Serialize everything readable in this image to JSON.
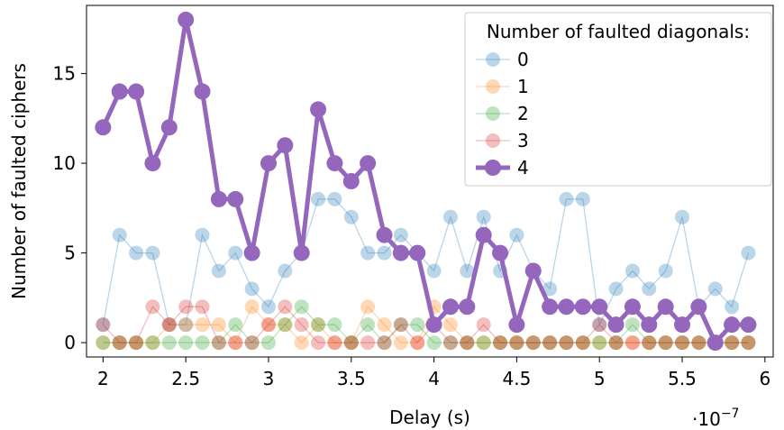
{
  "chart_data": {
    "type": "line",
    "title": "",
    "xlabel": "Delay (s)",
    "ylabel": "Number of faulted ciphers",
    "x_scale_label": "·10",
    "x_scale_exponent": "−7",
    "xlim": [
      1.9,
      6.05
    ],
    "ylim": [
      -0.8,
      18.8
    ],
    "x_ticks": [
      2,
      2.5,
      3,
      3.5,
      4,
      4.5,
      5,
      5.5,
      6
    ],
    "x_tick_labels": [
      "2",
      "2.5",
      "3",
      "3.5",
      "4",
      "4.5",
      "5",
      "5.5",
      "6"
    ],
    "y_ticks": [
      0,
      5,
      10,
      15
    ],
    "y_tick_labels": [
      "0",
      "5",
      "10",
      "15"
    ],
    "grid": false,
    "legend": {
      "title": "Number of faulted diagonals:",
      "position": "top-right"
    },
    "x": [
      2.0,
      2.1,
      2.2,
      2.3,
      2.4,
      2.5,
      2.6,
      2.7,
      2.8,
      2.9,
      3.0,
      3.1,
      3.2,
      3.3,
      3.4,
      3.5,
      3.6,
      3.7,
      3.8,
      3.9,
      4.0,
      4.1,
      4.2,
      4.3,
      4.4,
      4.5,
      4.6,
      4.7,
      4.8,
      4.9,
      5.0,
      5.1,
      5.2,
      5.3,
      5.4,
      5.5,
      5.6,
      5.7,
      5.8,
      5.9
    ],
    "series": [
      {
        "name": "0",
        "color": "#1f77b4",
        "emphasis": false,
        "values": [
          1,
          6,
          5,
          5,
          1,
          1,
          6,
          4,
          5,
          3,
          2,
          4,
          5,
          8,
          8,
          7,
          5,
          5,
          6,
          5,
          4,
          7,
          4,
          7,
          4,
          6,
          4,
          3,
          8,
          8,
          1,
          3,
          4,
          3,
          4,
          7,
          2,
          3,
          2,
          5
        ]
      },
      {
        "name": "1",
        "color": "#ff7f0e",
        "emphasis": false,
        "values": [
          0,
          0,
          0,
          0,
          1,
          1,
          1,
          1,
          0,
          2,
          1,
          1,
          0,
          1,
          0,
          0,
          2,
          1,
          0,
          0,
          2,
          1,
          0,
          0,
          0,
          0,
          0,
          0,
          0,
          0,
          0,
          0,
          0,
          0,
          0,
          0,
          0,
          0,
          0,
          0
        ]
      },
      {
        "name": "2",
        "color": "#2ca02c",
        "emphasis": false,
        "values": [
          0,
          0,
          0,
          0,
          0,
          0,
          0,
          0,
          1,
          0,
          0,
          1,
          2,
          1,
          1,
          0,
          1,
          0,
          1,
          1,
          0,
          0,
          0,
          0,
          0,
          0,
          0,
          0,
          0,
          0,
          0,
          0,
          1,
          0,
          0,
          0,
          0,
          0,
          0,
          0
        ]
      },
      {
        "name": "3",
        "color": "#d62728",
        "emphasis": false,
        "values": [
          1,
          0,
          0,
          2,
          1,
          2,
          2,
          0,
          0,
          0,
          1,
          2,
          1,
          0,
          0,
          0,
          0,
          0,
          1,
          0,
          1,
          0,
          0,
          1,
          0,
          0,
          0,
          0,
          0,
          0,
          1,
          0,
          0,
          0,
          0,
          0,
          0,
          0,
          0,
          0
        ]
      },
      {
        "name": "4",
        "color": "#9467bd",
        "emphasis": true,
        "values": [
          12,
          14,
          14,
          10,
          12,
          18,
          14,
          8,
          8,
          5,
          10,
          11,
          5,
          13,
          10,
          9,
          10,
          6,
          5,
          5,
          1,
          2,
          2,
          6,
          5,
          1,
          4,
          2,
          2,
          2,
          2,
          1,
          2,
          1,
          2,
          1,
          2,
          0,
          1,
          1
        ]
      }
    ]
  }
}
